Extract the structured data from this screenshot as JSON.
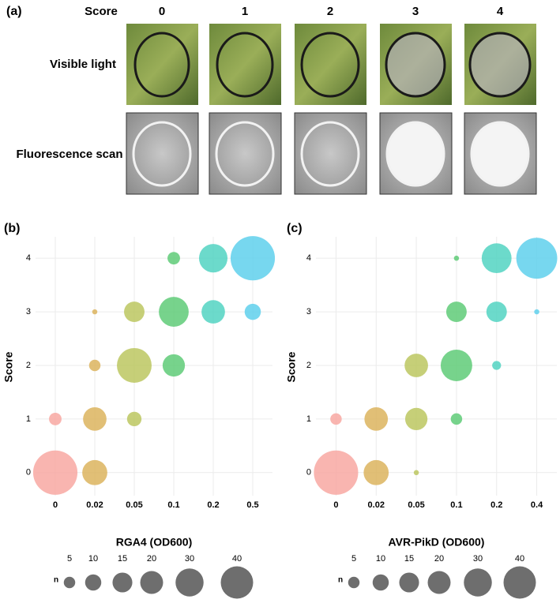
{
  "panel_a": {
    "label": "(a)",
    "score_label": "Score",
    "scores": [
      0,
      1,
      2,
      3,
      4
    ],
    "rows": [
      "Visible light",
      "Fluorescence scan"
    ]
  },
  "chart_data": [
    {
      "type": "bubble",
      "panel_label": "(b)",
      "x_label": "RGA4 (OD600)",
      "y_label": "Score",
      "categories": [
        "0",
        "0.02",
        "0.05",
        "0.1",
        "0.2",
        "0.5"
      ],
      "colors": [
        "#f8a8a2",
        "#dcb45e",
        "#bcc760",
        "#5fcb78",
        "#52d4c2",
        "#5fd0ec"
      ],
      "ylim": [
        -0.43,
        4.4
      ],
      "yticks": [
        0,
        1,
        2,
        3,
        4
      ],
      "grid": true,
      "points": [
        {
          "x": "0",
          "y": 0,
          "n": 75
        },
        {
          "x": "0",
          "y": 1,
          "n": 6
        },
        {
          "x": "0.02",
          "y": 0,
          "n": 24
        },
        {
          "x": "0.02",
          "y": 1,
          "n": 21
        },
        {
          "x": "0.02",
          "y": 2,
          "n": 5
        },
        {
          "x": "0.02",
          "y": 3,
          "n": 1
        },
        {
          "x": "0.05",
          "y": 1,
          "n": 8
        },
        {
          "x": "0.05",
          "y": 2,
          "n": 46
        },
        {
          "x": "0.05",
          "y": 3,
          "n": 16
        },
        {
          "x": "0.1",
          "y": 2,
          "n": 19
        },
        {
          "x": "0.1",
          "y": 3,
          "n": 34
        },
        {
          "x": "0.1",
          "y": 4,
          "n": 6
        },
        {
          "x": "0.2",
          "y": 3,
          "n": 21
        },
        {
          "x": "0.2",
          "y": 4,
          "n": 31
        },
        {
          "x": "0.5",
          "y": 3,
          "n": 10
        },
        {
          "x": "0.5",
          "y": 4,
          "n": 75
        }
      ],
      "size_legend": {
        "title": "n",
        "values": [
          5,
          10,
          15,
          20,
          30,
          40
        ]
      }
    },
    {
      "type": "bubble",
      "panel_label": "(c)",
      "x_label": "AVR-PikD (OD600)",
      "y_label": "Score",
      "categories": [
        "0",
        "0.02",
        "0.05",
        "0.1",
        "0.2",
        "0.4"
      ],
      "colors": [
        "#f8a8a2",
        "#dcb45e",
        "#bcc760",
        "#5fcb78",
        "#52d4c2",
        "#5fd0ec"
      ],
      "ylim": [
        -0.43,
        4.4
      ],
      "yticks": [
        0,
        1,
        2,
        3,
        4
      ],
      "grid": true,
      "points": [
        {
          "x": "0",
          "y": 0,
          "n": 75
        },
        {
          "x": "0",
          "y": 1,
          "n": 5
        },
        {
          "x": "0.02",
          "y": 0,
          "n": 24
        },
        {
          "x": "0.02",
          "y": 1,
          "n": 21
        },
        {
          "x": "0.05",
          "y": 0,
          "n": 1
        },
        {
          "x": "0.05",
          "y": 1,
          "n": 19
        },
        {
          "x": "0.05",
          "y": 2,
          "n": 21
        },
        {
          "x": "0.1",
          "y": 1,
          "n": 5
        },
        {
          "x": "0.1",
          "y": 2,
          "n": 38
        },
        {
          "x": "0.1",
          "y": 3,
          "n": 16
        },
        {
          "x": "0.1",
          "y": 4,
          "n": 1
        },
        {
          "x": "0.2",
          "y": 2,
          "n": 3
        },
        {
          "x": "0.2",
          "y": 3,
          "n": 16
        },
        {
          "x": "0.2",
          "y": 4,
          "n": 34
        },
        {
          "x": "0.4",
          "y": 3,
          "n": 1
        },
        {
          "x": "0.4",
          "y": 4,
          "n": 64
        }
      ],
      "size_legend": {
        "title": "n",
        "values": [
          5,
          10,
          15,
          20,
          30,
          40
        ]
      }
    }
  ]
}
